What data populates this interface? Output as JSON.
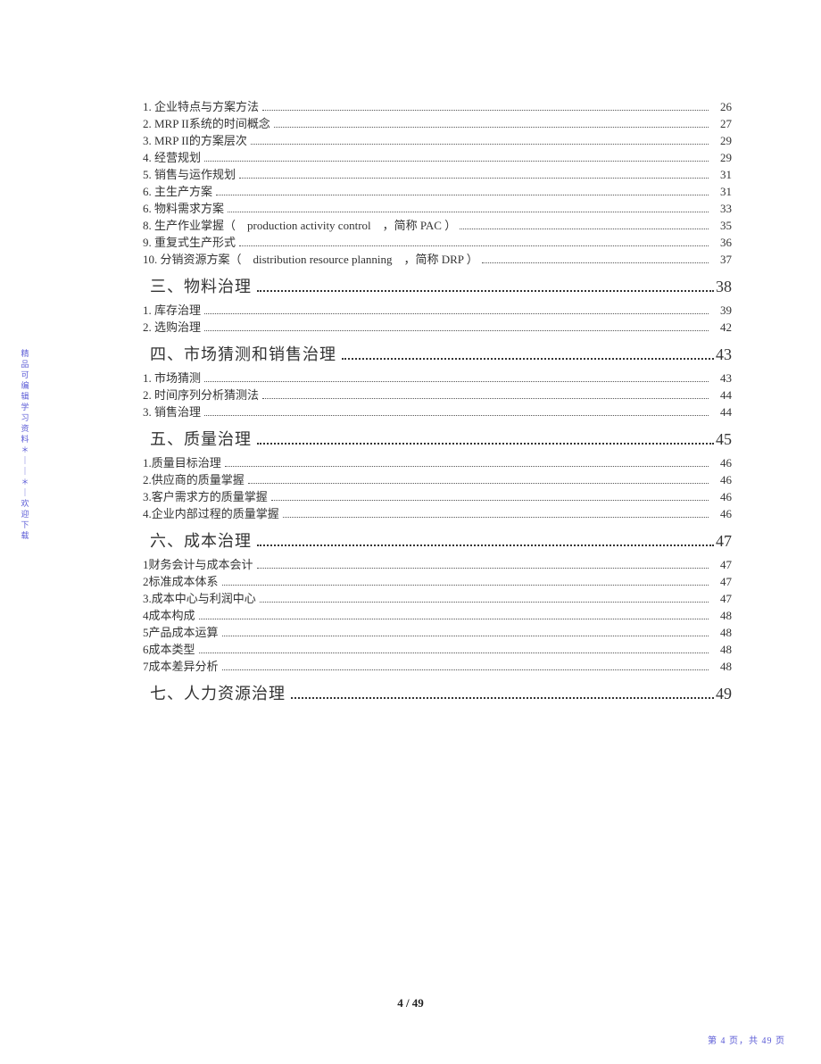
{
  "side_watermark": "精品可编辑学习资料＊｜｜＊｜欢迎下载",
  "footer_center": "4 / 49",
  "footer_right": "第 4 页，共 49 页",
  "sections": [
    {
      "heading": null,
      "items": [
        {
          "label": "1. 企业特点与方案方法",
          "page": "26"
        },
        {
          "label": "2. MRP II系统的时间概念",
          "page": "27"
        },
        {
          "label": "3. MRP II的方案层次",
          "page": "29"
        },
        {
          "label": "4. 经营规划",
          "page": "29"
        },
        {
          "label": "5. 销售与运作规划",
          "page": "31"
        },
        {
          "label": "6. 主生产方案",
          "page": "31"
        },
        {
          "label": "6. 物料需求方案",
          "page": "33"
        },
        {
          "label": "8. 生产作业掌握（　production activity control　，简称 PAC ）",
          "page": "35"
        },
        {
          "label": "9. 重复式生产形式",
          "page": "36"
        },
        {
          "label": "10. 分销资源方案（　distribution resource planning　，简称 DRP ）",
          "page": "37"
        }
      ]
    },
    {
      "heading": {
        "label": "三、物料治理",
        "page": "38"
      },
      "items": [
        {
          "label": "1. 库存治理",
          "page": "39"
        },
        {
          "label": "2. 选购治理",
          "page": "42"
        }
      ]
    },
    {
      "heading": {
        "label": "四、市场猜测和销售治理",
        "page": "43"
      },
      "items": [
        {
          "label": "1. 市场猜测",
          "page": "43"
        },
        {
          "label": "2. 时间序列分析猜测法",
          "page": "44"
        },
        {
          "label": "3. 销售治理",
          "page": "44"
        }
      ]
    },
    {
      "heading": {
        "label": "五、质量治理",
        "page": "45"
      },
      "items": [
        {
          "label": "1.质量目标治理",
          "page": "46"
        },
        {
          "label": "2.供应商的质量掌握",
          "page": "46"
        },
        {
          "label": "3.客户需求方的质量掌握",
          "page": "46"
        },
        {
          "label": "4.企业内部过程的质量掌握",
          "page": "46"
        }
      ]
    },
    {
      "heading": {
        "label": "六、成本治理",
        "page": "47"
      },
      "items": [
        {
          "label": "1财务会计与成本会计",
          "page": "47"
        },
        {
          "label": "2标准成本体系",
          "page": "47"
        },
        {
          "label": "3.成本中心与利润中心",
          "page": "47"
        },
        {
          "label": "4成本构成",
          "page": "48"
        },
        {
          "label": "5产品成本运算",
          "page": "48"
        },
        {
          "label": "6成本类型",
          "page": "48"
        },
        {
          "label": "7成本差异分析",
          "page": "48"
        }
      ]
    },
    {
      "heading": {
        "label": "七、人力资源治理",
        "page": "49"
      },
      "items": []
    }
  ]
}
